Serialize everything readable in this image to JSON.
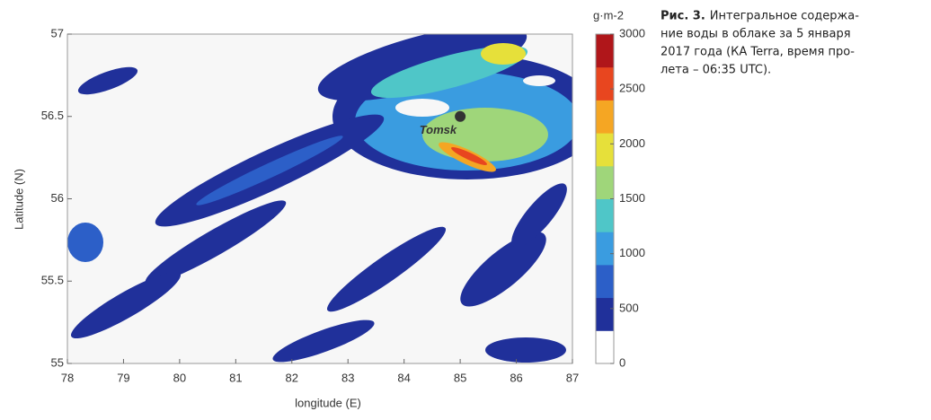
{
  "chart_data": {
    "type": "contour",
    "xlabel": "longitude (E)",
    "ylabel": "Latitude (N)",
    "xlim": [
      78,
      87
    ],
    "ylim": [
      55,
      57
    ],
    "xticks": [
      78,
      79,
      80,
      81,
      82,
      83,
      84,
      85,
      86,
      87
    ],
    "yticks": [
      55,
      55.5,
      56,
      56.5,
      57
    ],
    "colorbar": {
      "label": "g·m-2",
      "clim": [
        0,
        3000
      ],
      "ticks": [
        0,
        500,
        1000,
        1500,
        2000,
        2500,
        3000
      ],
      "colors": [
        "#ffffff",
        "#20309a",
        "#2c5fc8",
        "#3a9ce0",
        "#4fc6c8",
        "#9fd67a",
        "#e6e03a",
        "#f5a623",
        "#e8461f",
        "#b0161a"
      ]
    },
    "annotations": [
      {
        "text": "Tomsk",
        "x": 85,
        "y": 56.5
      }
    ],
    "caption": {
      "label": "Рис. 3.",
      "lines": [
        "Интегральное содержа-",
        "ние воды в облаке за 5 января",
        "2017 года (КА Terra, время про-",
        "лета – 06:35 UTC)."
      ]
    }
  }
}
